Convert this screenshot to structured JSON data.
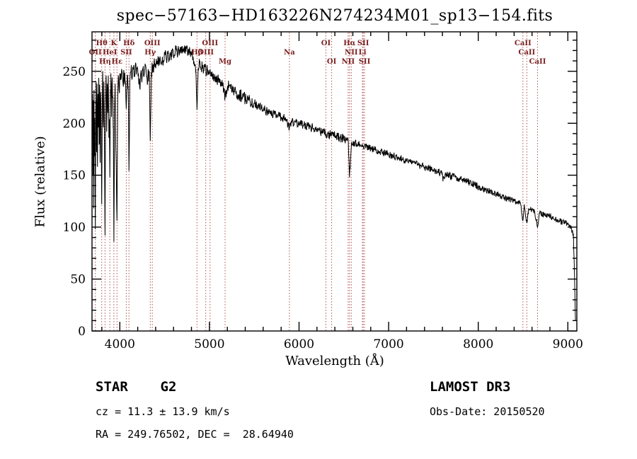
{
  "title": "spec−57163−HD163226N274234M01_sp13−154.fits",
  "axes": {
    "xlabel": "Wavelength (Å)",
    "ylabel": "Flux (relative)"
  },
  "footer": {
    "classification": "STAR    G2",
    "cz": "cz = 11.3 ± 13.9 km/s",
    "radec": "RA = 249.76502, DEC =  28.64940",
    "survey": "LAMOST DR3",
    "obs_date": "Obs-Date: 20150520"
  },
  "chart_data": {
    "type": "line",
    "title": "spec−57163−HD163226N274234M01_sp13−154.fits",
    "xlabel": "Wavelength (Å)",
    "ylabel": "Flux (relative)",
    "xlim": [
      3690,
      9100
    ],
    "ylim": [
      0,
      288
    ],
    "xticks": [
      4000,
      5000,
      6000,
      7000,
      8000,
      9000
    ],
    "yticks": [
      0,
      50,
      100,
      150,
      200,
      250
    ],
    "x_minor_step": 200,
    "y_minor_step": 10,
    "grid": false,
    "legend": "none",
    "line_color": "#000000",
    "marker_line_color": "#b05050",
    "marker_label_color": "#7a1f1f",
    "spectral_lines": [
      {
        "wavelength": 3727,
        "label": "OII",
        "row": 2
      },
      {
        "wavelength": 3798,
        "label": "Hθ",
        "row": 1
      },
      {
        "wavelength": 3835,
        "label": "Hη",
        "row": 3
      },
      {
        "wavelength": 3889,
        "label": "HeI",
        "row": 2
      },
      {
        "wavelength": 3934,
        "label": "K",
        "row": 1
      },
      {
        "wavelength": 3969,
        "label": "Hε",
        "row": 3
      },
      {
        "wavelength": 4072,
        "label": "SII",
        "row": 2
      },
      {
        "wavelength": 4102,
        "label": "Hδ",
        "row": 1
      },
      {
        "wavelength": 4340,
        "label": "Hγ",
        "row": 2
      },
      {
        "wavelength": 4363,
        "label": "OIII",
        "row": 1
      },
      {
        "wavelength": 4861,
        "label": "Hβ",
        "row": 2
      },
      {
        "wavelength": 4959,
        "label": "OIII",
        "row": 2
      },
      {
        "wavelength": 5007,
        "label": "OIII",
        "row": 1
      },
      {
        "wavelength": 5175,
        "label": "Mg",
        "row": 3
      },
      {
        "wavelength": 5893,
        "label": "Na",
        "row": 2
      },
      {
        "wavelength": 6300,
        "label": "OI",
        "row": 1
      },
      {
        "wavelength": 6364,
        "label": "OI",
        "row": 3
      },
      {
        "wavelength": 6548,
        "label": "NII",
        "row": 3
      },
      {
        "wavelength": 6563,
        "label": "Hα",
        "row": 1
      },
      {
        "wavelength": 6583,
        "label": "NII",
        "row": 2
      },
      {
        "wavelength": 6708,
        "label": "Li",
        "row": 2
      },
      {
        "wavelength": 6716,
        "label": "SII",
        "row": 1
      },
      {
        "wavelength": 6731,
        "label": "SII",
        "row": 3
      },
      {
        "wavelength": 8498,
        "label": "CaII",
        "row": 1
      },
      {
        "wavelength": 8542,
        "label": "CaII",
        "row": 2
      },
      {
        "wavelength": 8662,
        "label": "CaII",
        "row": 3
      }
    ],
    "spectrum": {
      "noise_seed": 57163,
      "sample_step": 4,
      "noise_regions": [
        [
          4000,
          13
        ],
        [
          4460,
          9
        ],
        [
          5500,
          6
        ],
        [
          6500,
          4.5
        ],
        [
          8000,
          3.5
        ],
        [
          9200,
          2.8
        ]
      ],
      "anchor_points": [
        [
          3692,
          195
        ],
        [
          3696,
          228
        ],
        [
          3700,
          150
        ],
        [
          3704,
          222
        ],
        [
          3708,
          118
        ],
        [
          3712,
          232
        ],
        [
          3716,
          168
        ],
        [
          3720,
          205
        ],
        [
          3724,
          135
        ],
        [
          3727,
          98
        ],
        [
          3731,
          210
        ],
        [
          3736,
          240
        ],
        [
          3741,
          172
        ],
        [
          3746,
          238
        ],
        [
          3751,
          158
        ],
        [
          3756,
          228
        ],
        [
          3761,
          196
        ],
        [
          3766,
          242
        ],
        [
          3771,
          180
        ],
        [
          3776,
          236
        ],
        [
          3781,
          162
        ],
        [
          3786,
          230
        ],
        [
          3791,
          198
        ],
        [
          3798,
          122
        ],
        [
          3805,
          226
        ],
        [
          3811,
          244
        ],
        [
          3817,
          196
        ],
        [
          3823,
          240
        ],
        [
          3829,
          175
        ],
        [
          3835,
          92
        ],
        [
          3842,
          218
        ],
        [
          3848,
          246
        ],
        [
          3854,
          192
        ],
        [
          3860,
          238
        ],
        [
          3866,
          210
        ],
        [
          3872,
          246
        ],
        [
          3878,
          186
        ],
        [
          3883,
          204
        ],
        [
          3889,
          148
        ],
        [
          3895,
          232
        ],
        [
          3901,
          248
        ],
        [
          3908,
          206
        ],
        [
          3915,
          244
        ],
        [
          3922,
          226
        ],
        [
          3928,
          196
        ],
        [
          3934,
          86
        ],
        [
          3941,
          212
        ],
        [
          3948,
          238
        ],
        [
          3955,
          176
        ],
        [
          3962,
          148
        ],
        [
          3969,
          106
        ],
        [
          3977,
          224
        ],
        [
          3984,
          246
        ],
        [
          3992,
          232
        ],
        [
          4000,
          248
        ],
        [
          4012,
          242
        ],
        [
          4024,
          250
        ],
        [
          4036,
          238
        ],
        [
          4048,
          248
        ],
        [
          4060,
          240
        ],
        [
          4072,
          214
        ],
        [
          4084,
          246
        ],
        [
          4094,
          236
        ],
        [
          4102,
          154
        ],
        [
          4112,
          240
        ],
        [
          4124,
          250
        ],
        [
          4136,
          242
        ],
        [
          4148,
          252
        ],
        [
          4160,
          245
        ],
        [
          4172,
          254
        ],
        [
          4184,
          247
        ],
        [
          4196,
          254
        ],
        [
          4208,
          248
        ],
        [
          4218,
          243
        ],
        [
          4226,
          233
        ],
        [
          4238,
          251
        ],
        [
          4250,
          246
        ],
        [
          4262,
          255
        ],
        [
          4274,
          248
        ],
        [
          4286,
          256
        ],
        [
          4298,
          245
        ],
        [
          4308,
          237
        ],
        [
          4320,
          250
        ],
        [
          4330,
          242
        ],
        [
          4340,
          183
        ],
        [
          4352,
          249
        ],
        [
          4364,
          255
        ],
        [
          4376,
          249
        ],
        [
          4388,
          258
        ],
        [
          4400,
          253
        ],
        [
          4415,
          260
        ],
        [
          4430,
          255
        ],
        [
          4445,
          262
        ],
        [
          4460,
          257
        ],
        [
          4475,
          264
        ],
        [
          4490,
          259
        ],
        [
          4505,
          266
        ],
        [
          4520,
          261
        ],
        [
          4535,
          267
        ],
        [
          4550,
          262
        ],
        [
          4565,
          268
        ],
        [
          4580,
          264
        ],
        [
          4595,
          270
        ],
        [
          4610,
          265
        ],
        [
          4625,
          271
        ],
        [
          4640,
          266
        ],
        [
          4655,
          272
        ],
        [
          4670,
          267
        ],
        [
          4685,
          273
        ],
        [
          4700,
          268
        ],
        [
          4715,
          273
        ],
        [
          4730,
          267
        ],
        [
          4745,
          272
        ],
        [
          4760,
          266
        ],
        [
          4775,
          270
        ],
        [
          4790,
          264
        ],
        [
          4805,
          268
        ],
        [
          4820,
          262
        ],
        [
          4835,
          257
        ],
        [
          4848,
          252
        ],
        [
          4861,
          213
        ],
        [
          4875,
          253
        ],
        [
          4890,
          258
        ],
        [
          4905,
          252
        ],
        [
          4920,
          256
        ],
        [
          4935,
          251
        ],
        [
          4950,
          254
        ],
        [
          4965,
          249
        ],
        [
          4980,
          252
        ],
        [
          4995,
          248
        ],
        [
          5010,
          250
        ],
        [
          5025,
          245
        ],
        [
          5040,
          247
        ],
        [
          5055,
          243
        ],
        [
          5070,
          245
        ],
        [
          5085,
          241
        ],
        [
          5100,
          242
        ],
        [
          5115,
          239
        ],
        [
          5130,
          240
        ],
        [
          5145,
          236
        ],
        [
          5160,
          231
        ],
        [
          5175,
          225
        ],
        [
          5190,
          232
        ],
        [
          5205,
          236
        ],
        [
          5240,
          233
        ],
        [
          5280,
          230
        ],
        [
          5320,
          228
        ],
        [
          5380,
          225
        ],
        [
          5440,
          222
        ],
        [
          5500,
          219
        ],
        [
          5560,
          216
        ],
        [
          5620,
          213
        ],
        [
          5680,
          210
        ],
        [
          5740,
          208
        ],
        [
          5800,
          206
        ],
        [
          5860,
          204
        ],
        [
          5893,
          195
        ],
        [
          5915,
          202
        ],
        [
          5960,
          201
        ],
        [
          6000,
          200
        ],
        [
          6100,
          197
        ],
        [
          6200,
          194
        ],
        [
          6300,
          190
        ],
        [
          6400,
          188
        ],
        [
          6500,
          185
        ],
        [
          6550,
          183
        ],
        [
          6563,
          148
        ],
        [
          6585,
          182
        ],
        [
          6700,
          179
        ],
        [
          6800,
          176
        ],
        [
          6900,
          173
        ],
        [
          7000,
          170
        ],
        [
          7100,
          167
        ],
        [
          7200,
          164
        ],
        [
          7300,
          161
        ],
        [
          7400,
          158
        ],
        [
          7500,
          155
        ],
        [
          7550,
          153
        ],
        [
          7598,
          152
        ],
        [
          7607,
          146
        ],
        [
          7630,
          151
        ],
        [
          7700,
          149
        ],
        [
          7750,
          148
        ],
        [
          7800,
          146
        ],
        [
          7850,
          145
        ],
        [
          7900,
          143
        ],
        [
          7950,
          141
        ],
        [
          8000,
          139
        ],
        [
          8050,
          137
        ],
        [
          8100,
          135
        ],
        [
          8150,
          134
        ],
        [
          8200,
          132
        ],
        [
          8250,
          130
        ],
        [
          8300,
          128
        ],
        [
          8350,
          127
        ],
        [
          8400,
          125
        ],
        [
          8440,
          124
        ],
        [
          8470,
          123
        ],
        [
          8498,
          106
        ],
        [
          8515,
          120
        ],
        [
          8542,
          104
        ],
        [
          8562,
          118
        ],
        [
          8600,
          117
        ],
        [
          8630,
          115
        ],
        [
          8662,
          100
        ],
        [
          8685,
          113
        ],
        [
          8730,
          112
        ],
        [
          8780,
          111
        ],
        [
          8830,
          109
        ],
        [
          8880,
          107
        ],
        [
          8930,
          105
        ],
        [
          8970,
          104
        ],
        [
          9000,
          103
        ],
        [
          9040,
          99
        ],
        [
          9062,
          92
        ],
        [
          9075,
          50
        ],
        [
          9085,
          10
        ]
      ]
    }
  }
}
